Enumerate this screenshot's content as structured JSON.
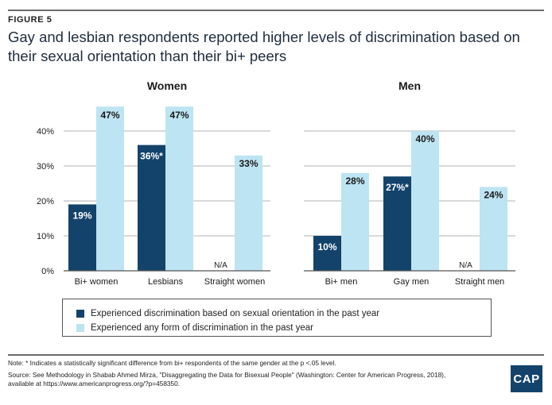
{
  "figure_label": "FIGURE 5",
  "title": "Gay and lesbian respondents reported higher levels of discrimination based on their sexual orientation than their bi+ peers",
  "colors": {
    "series1": "#13436b",
    "series2": "#bde4f2",
    "axis": "#555555",
    "grid": "#9a9a9a"
  },
  "chart_data": [
    {
      "type": "bar",
      "title": "Women",
      "categories": [
        "Bi+ women",
        "Lesbians",
        "Straight women"
      ],
      "series": [
        {
          "name": "Experienced discrimination based on sexual orientation in the past year",
          "values": [
            19,
            36,
            null
          ],
          "labels": [
            "19%",
            "36%*",
            "N/A"
          ]
        },
        {
          "name": "Experienced any form of discrimination in the past year",
          "values": [
            47,
            47,
            33
          ],
          "labels": [
            "47%",
            "47%",
            "33%"
          ]
        }
      ],
      "yticks": [
        "0%",
        "10%",
        "20%",
        "30%",
        "40%"
      ],
      "ylim": [
        0,
        47
      ],
      "grid": true
    },
    {
      "type": "bar",
      "title": "Men",
      "categories": [
        "Bi+ men",
        "Gay men",
        "Straight men"
      ],
      "series": [
        {
          "name": "Experienced discrimination based on sexual orientation in the past year",
          "values": [
            10,
            27,
            null
          ],
          "labels": [
            "10%",
            "27%*",
            "N/A"
          ]
        },
        {
          "name": "Experienced any form of discrimination in the past year",
          "values": [
            28,
            40,
            24
          ],
          "labels": [
            "28%",
            "40%",
            "24%"
          ]
        }
      ],
      "ylim": [
        0,
        47
      ],
      "grid": true
    }
  ],
  "legend": [
    "Experienced discrimination based on sexual orientation in the past year",
    "Experienced any form of discrimination in the past year"
  ],
  "notes": {
    "note": "Note: * Indicates a statistically significant difference from bi+ respondents of the same gender at the p <.05 level.",
    "source1": "Source: See Methodology in Shabab Ahmed Mirza, \"Disaggregating the Data for Bisexual People\" (Washington: Center for American Progress, 2018),",
    "source2": "available at https://www.americanprogress.org/?p=458350."
  },
  "logo": "CAP"
}
